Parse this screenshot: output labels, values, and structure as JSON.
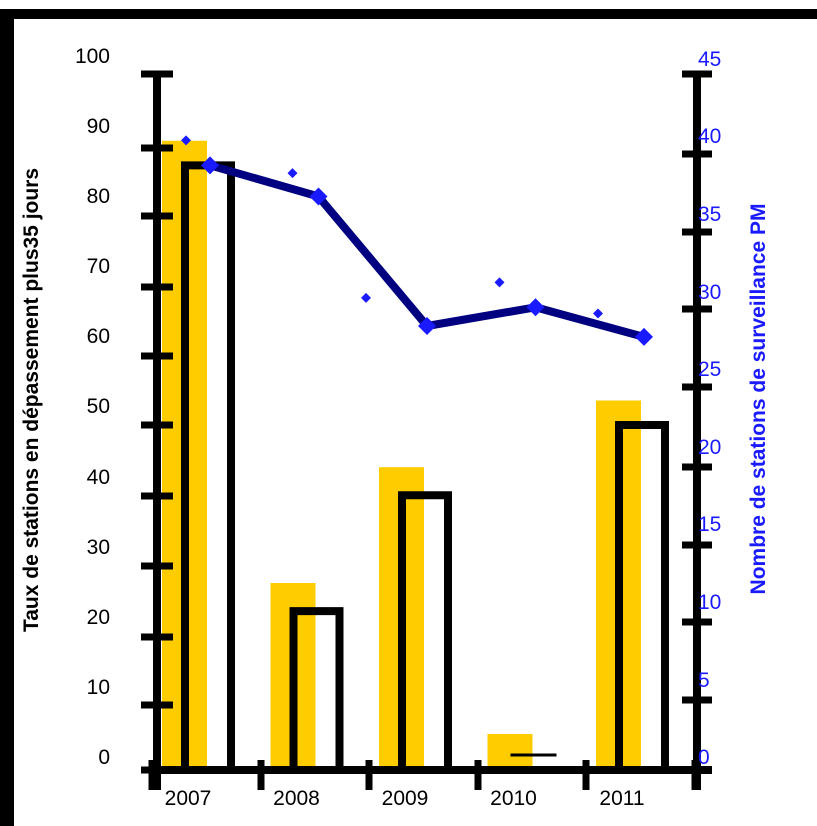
{
  "chart_data": {
    "type": "bar",
    "categories": [
      "2007",
      "2008",
      "2009",
      "2010",
      "2011"
    ],
    "series": [
      {
        "kind": "bar",
        "axis": "left",
        "color": "#ffcc00",
        "values": [
          87.5,
          24.5,
          41,
          3,
          50.5
        ]
      },
      {
        "kind": "bar",
        "axis": "left",
        "style": "outline",
        "color": "#000000",
        "values": [
          84,
          20.5,
          37,
          0,
          47
        ]
      },
      {
        "kind": "line",
        "axis": "right",
        "color": "#000080",
        "marker_color": "#1a1aff",
        "values": [
          37.8,
          35.8,
          27.5,
          28.7,
          26.8
        ]
      },
      {
        "kind": "scatter",
        "axis": "right",
        "color": "#1a1aff",
        "values": [
          39.4,
          37.3,
          29.3,
          30.3,
          28.3
        ]
      }
    ],
    "y_left": {
      "label": "Taux de stations en dépassement plus35 jours",
      "lim": [
        0,
        100
      ],
      "ticks": [
        "0",
        "10",
        "20",
        "30",
        "40",
        "50",
        "60",
        "70",
        "80",
        "90",
        "100"
      ]
    },
    "y_right": {
      "label": "Nombre de stations de surveillance PM",
      "lim": [
        0,
        45
      ],
      "ticks": [
        "0",
        "5",
        "10",
        "15",
        "20",
        "25",
        "30",
        "35",
        "40",
        "45"
      ]
    },
    "grid": false,
    "legend": "none"
  }
}
